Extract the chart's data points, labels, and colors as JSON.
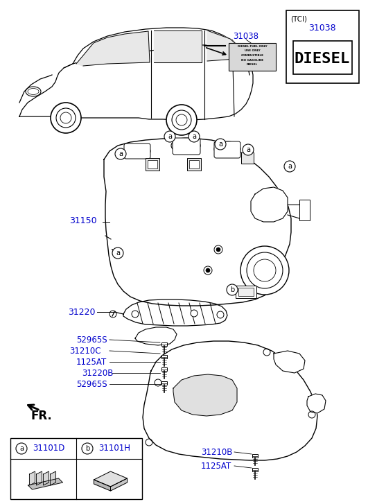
{
  "bg_color": "#ffffff",
  "blue_color": "#0000cc",
  "black_color": "#000000",
  "tci_text": "(TCI)",
  "diesel_text": "DIESEL",
  "fr_text": "FR.",
  "parts": {
    "31038_label": "31038",
    "31038_tci_label": "31038",
    "31150_label": "31150",
    "31220_label": "31220",
    "52965S_label1": "52965S",
    "31210C_label": "31210C",
    "1125AT_label1": "1125AT",
    "31220B_label": "31220B",
    "52965S_label2": "52965S",
    "31210B_label": "31210B",
    "1125AT_label2": "1125AT",
    "a_31101D": "31101D",
    "b_31101H": "31101H"
  }
}
